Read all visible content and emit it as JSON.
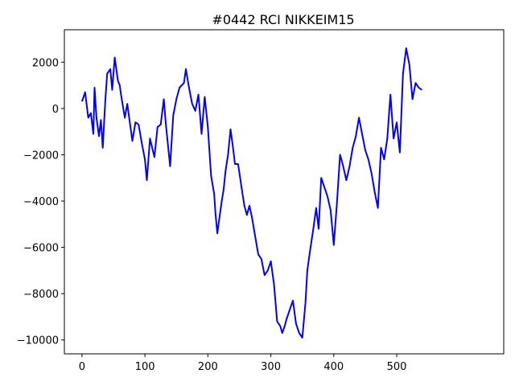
{
  "chart_data": {
    "type": "line",
    "title": "#0442 RCI NIKKEIM15",
    "xlabel": "",
    "ylabel": "",
    "xlim": [
      -28,
      670
    ],
    "ylim": [
      -10600,
      3400
    ],
    "xticks": [
      0,
      100,
      200,
      300,
      400,
      500
    ],
    "yticks": [
      -10000,
      -8000,
      -6000,
      -4000,
      -2000,
      0,
      2000
    ],
    "x_tick_labels": [
      "0",
      "100",
      "200",
      "300",
      "400",
      "500"
    ],
    "y_tick_labels": [
      "−10000",
      "−8000",
      "−6000",
      "−4000",
      "−2000",
      "0",
      "2000"
    ],
    "grid": false,
    "legend": "none",
    "series": [
      {
        "color": "#0000ff",
        "x": [
          0,
          5,
          10,
          14,
          18,
          20,
          23,
          27,
          30,
          33,
          37,
          40,
          45,
          48,
          52,
          57,
          60,
          62,
          68,
          72,
          80,
          85,
          90,
          95,
          100,
          103,
          108,
          115,
          120,
          125,
          130,
          133,
          140,
          145,
          150,
          155,
          162,
          165,
          170,
          175,
          180,
          185,
          190,
          195,
          200,
          205,
          210,
          212,
          215,
          218,
          222,
          225,
          228,
          232,
          236,
          240,
          243,
          248,
          255,
          258,
          262,
          266,
          270,
          275,
          280,
          285,
          290,
          295,
          300,
          305,
          310,
          315,
          318,
          322,
          325,
          330,
          335,
          340,
          345,
          350,
          355,
          358,
          362,
          368,
          372,
          376,
          380,
          385,
          390,
          395,
          400,
          405,
          410,
          415,
          420,
          425,
          430,
          435,
          440,
          445,
          450,
          455,
          460,
          465,
          470,
          475,
          480,
          485,
          490,
          495,
          500,
          505,
          510,
          515,
          520,
          525,
          530,
          535,
          540
        ],
        "y": [
          300,
          700,
          -400,
          -200,
          -1100,
          900,
          -400,
          -1200,
          -500,
          -1700,
          300,
          1500,
          1700,
          800,
          2200,
          1200,
          1000,
          600,
          -400,
          200,
          -1400,
          -600,
          -700,
          -1500,
          -2200,
          -3100,
          -1300,
          -2100,
          -800,
          -700,
          400,
          -600,
          -2500,
          -300,
          400,
          900,
          1100,
          1700,
          900,
          200,
          -100,
          600,
          -1100,
          500,
          -800,
          -2900,
          -3700,
          -4500,
          -5400,
          -4800,
          -4000,
          -3500,
          -2700,
          -2000,
          -900,
          -1700,
          -2400,
          -2400,
          -3700,
          -4200,
          -4600,
          -4200,
          -4700,
          -5500,
          -6300,
          -6500,
          -7200,
          -7000,
          -6600,
          -7600,
          -9200,
          -9400,
          -9700,
          -9400,
          -9100,
          -8700,
          -8300,
          -9300,
          -9700,
          -9900,
          -8400,
          -7000,
          -6200,
          -5100,
          -4300,
          -5200,
          -3000,
          -3400,
          -3800,
          -4400,
          -5900,
          -4100,
          -2000,
          -2500,
          -3100,
          -2500,
          -1700,
          -1200,
          -400,
          -1100,
          -1800,
          -2200,
          -2800,
          -3600,
          -4300,
          -1700,
          -2200,
          -1300,
          600,
          -1300,
          -600,
          -1900,
          1500,
          2600,
          1900,
          400,
          1100,
          900,
          800
        ]
      }
    ]
  }
}
